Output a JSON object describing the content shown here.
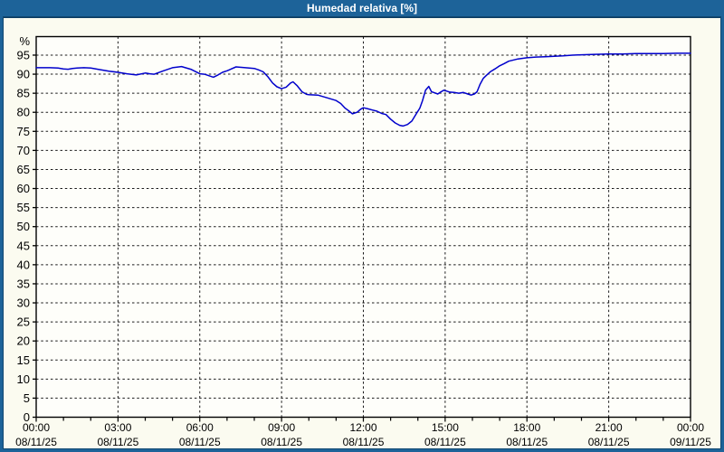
{
  "window": {
    "title": "Humedad relativa [%]"
  },
  "colors": {
    "titlebar_bg": "#1d6399",
    "titlebar_text": "#ffffff",
    "window_border": "#1d6399",
    "content_bg": "#fbfbf0",
    "plot_bg": "#fefefa",
    "axis": "#000000",
    "grid": "#1a1a1a",
    "label": "#000000",
    "line": "#0000cc"
  },
  "chart_data": {
    "type": "line",
    "title": "Humedad relativa [%]",
    "ylabel": "%",
    "ylim": [
      0,
      100
    ],
    "grid": "dashed",
    "legend": "none",
    "y_ticks": [
      0,
      5,
      10,
      15,
      20,
      25,
      30,
      35,
      40,
      45,
      50,
      55,
      60,
      65,
      70,
      75,
      80,
      85,
      90,
      95
    ],
    "x_ticks": [
      {
        "hour": 0,
        "time": "00:00",
        "date": "08/11/25"
      },
      {
        "hour": 3,
        "time": "03:00",
        "date": "08/11/25"
      },
      {
        "hour": 6,
        "time": "06:00",
        "date": "08/11/25"
      },
      {
        "hour": 9,
        "time": "09:00",
        "date": "08/11/25"
      },
      {
        "hour": 12,
        "time": "12:00",
        "date": "08/11/25"
      },
      {
        "hour": 15,
        "time": "15:00",
        "date": "08/11/25"
      },
      {
        "hour": 18,
        "time": "18:00",
        "date": "08/11/25"
      },
      {
        "hour": 21,
        "time": "21:00",
        "date": "08/11/25"
      },
      {
        "hour": 24,
        "time": "00:00",
        "date": "09/11/25"
      }
    ],
    "minor_x_tick_every_hours": 1,
    "x_range_hours": [
      0,
      24
    ],
    "series": [
      {
        "name": "Humedad relativa",
        "unit": "%",
        "color": "#0000cc",
        "points": [
          [
            0.0,
            91.7
          ],
          [
            0.5,
            91.7
          ],
          [
            0.8,
            91.6
          ],
          [
            1.0,
            91.4
          ],
          [
            1.17,
            91.3
          ],
          [
            1.33,
            91.5
          ],
          [
            1.5,
            91.6
          ],
          [
            1.75,
            91.7
          ],
          [
            2.0,
            91.6
          ],
          [
            2.33,
            91.2
          ],
          [
            2.67,
            90.8
          ],
          [
            3.0,
            90.5
          ],
          [
            3.33,
            90.1
          ],
          [
            3.67,
            89.8
          ],
          [
            4.0,
            90.3
          ],
          [
            4.17,
            90.1
          ],
          [
            4.33,
            90.0
          ],
          [
            4.67,
            90.9
          ],
          [
            5.0,
            91.7
          ],
          [
            5.33,
            92.0
          ],
          [
            5.67,
            91.3
          ],
          [
            6.0,
            90.1
          ],
          [
            6.17,
            90.0
          ],
          [
            6.33,
            89.6
          ],
          [
            6.5,
            89.2
          ],
          [
            6.67,
            89.8
          ],
          [
            6.83,
            90.5
          ],
          [
            7.0,
            90.9
          ],
          [
            7.33,
            91.9
          ],
          [
            7.67,
            91.7
          ],
          [
            8.0,
            91.5
          ],
          [
            8.17,
            91.1
          ],
          [
            8.33,
            90.6
          ],
          [
            8.5,
            89.3
          ],
          [
            8.67,
            87.7
          ],
          [
            8.83,
            86.7
          ],
          [
            9.0,
            86.2
          ],
          [
            9.17,
            86.6
          ],
          [
            9.33,
            87.7
          ],
          [
            9.42,
            88.0
          ],
          [
            9.58,
            86.9
          ],
          [
            9.75,
            85.4
          ],
          [
            9.92,
            84.7
          ],
          [
            10.0,
            84.6
          ],
          [
            10.33,
            84.5
          ],
          [
            10.67,
            83.8
          ],
          [
            11.0,
            83.1
          ],
          [
            11.17,
            82.3
          ],
          [
            11.33,
            81.1
          ],
          [
            11.5,
            80.2
          ],
          [
            11.6,
            79.6
          ],
          [
            11.77,
            80.0
          ],
          [
            11.9,
            80.8
          ],
          [
            12.0,
            81.2
          ],
          [
            12.17,
            80.9
          ],
          [
            12.33,
            80.6
          ],
          [
            12.5,
            80.3
          ],
          [
            12.67,
            79.7
          ],
          [
            12.83,
            79.4
          ],
          [
            13.0,
            78.2
          ],
          [
            13.17,
            77.2
          ],
          [
            13.33,
            76.6
          ],
          [
            13.45,
            76.4
          ],
          [
            13.62,
            76.8
          ],
          [
            13.78,
            77.7
          ],
          [
            13.95,
            79.7
          ],
          [
            14.07,
            81.1
          ],
          [
            14.17,
            83.1
          ],
          [
            14.28,
            85.8
          ],
          [
            14.4,
            86.8
          ],
          [
            14.5,
            85.4
          ],
          [
            14.62,
            85.1
          ],
          [
            14.73,
            84.8
          ],
          [
            14.83,
            85.3
          ],
          [
            14.95,
            85.8
          ],
          [
            15.0,
            85.7
          ],
          [
            15.17,
            85.3
          ],
          [
            15.33,
            85.2
          ],
          [
            15.5,
            85.0
          ],
          [
            15.67,
            85.2
          ],
          [
            15.83,
            84.8
          ],
          [
            15.95,
            84.5
          ],
          [
            16.07,
            84.8
          ],
          [
            16.17,
            85.4
          ],
          [
            16.28,
            87.3
          ],
          [
            16.4,
            88.9
          ],
          [
            16.5,
            89.6
          ],
          [
            16.67,
            90.7
          ],
          [
            16.83,
            91.4
          ],
          [
            17.0,
            92.2
          ],
          [
            17.17,
            92.8
          ],
          [
            17.33,
            93.4
          ],
          [
            17.67,
            94.0
          ],
          [
            18.0,
            94.3
          ],
          [
            18.33,
            94.5
          ],
          [
            18.67,
            94.6
          ],
          [
            19.0,
            94.7
          ],
          [
            19.33,
            94.8
          ],
          [
            19.67,
            95.0
          ],
          [
            20.0,
            95.1
          ],
          [
            20.5,
            95.2
          ],
          [
            21.0,
            95.3
          ],
          [
            21.5,
            95.3
          ],
          [
            22.0,
            95.4
          ],
          [
            22.5,
            95.4
          ],
          [
            23.0,
            95.4
          ],
          [
            23.5,
            95.5
          ],
          [
            24.0,
            95.5
          ]
        ]
      }
    ]
  }
}
